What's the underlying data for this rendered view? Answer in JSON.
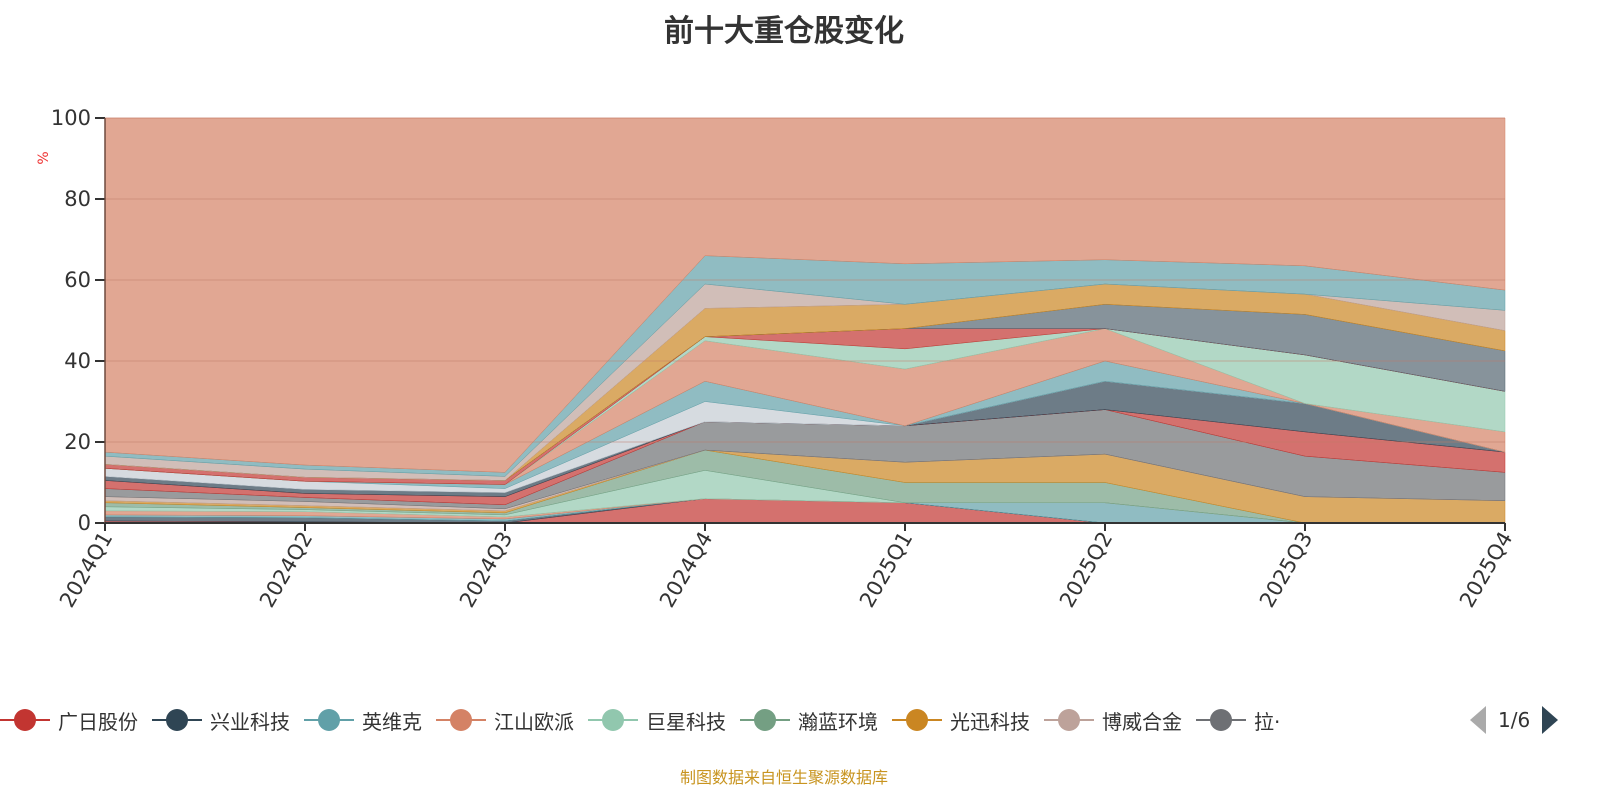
{
  "chart_data": {
    "type": "area",
    "stacked": true,
    "title": "前十大重仓股变化",
    "ylabel": "%",
    "ylim": [
      0,
      100
    ],
    "yticks": [
      "0",
      "20",
      "40",
      "60",
      "80",
      "100"
    ],
    "categories": [
      "2024Q1",
      "2024Q2",
      "2024Q3",
      "2024Q4",
      "2025Q1",
      "2025Q2",
      "2025Q3",
      "2025Q4"
    ],
    "series": [
      {
        "name": "广日股份",
        "color": "#c23531",
        "values": [
          0.5,
          0.3,
          0,
          6,
          5,
          0,
          0,
          0
        ]
      },
      {
        "name": "兴业科技",
        "color": "#2f4554",
        "values": [
          1,
          1,
          0.5,
          0,
          0,
          0,
          0,
          0
        ]
      },
      {
        "name": "英维克",
        "color": "#61a0a8",
        "values": [
          0.5,
          0.5,
          0.5,
          0,
          0,
          5,
          0,
          0
        ]
      },
      {
        "name": "江山欧派",
        "color": "#d48265",
        "values": [
          1,
          1,
          0.5,
          0,
          0,
          0,
          0,
          0
        ]
      },
      {
        "name": "巨星科技",
        "color": "#91c7ae",
        "values": [
          1,
          0.5,
          0.5,
          7,
          0,
          0,
          0,
          0
        ]
      },
      {
        "name": "瀚蓝环境",
        "color": "#749f83",
        "values": [
          1,
          0.5,
          0.5,
          5,
          5,
          5,
          0,
          0
        ]
      },
      {
        "name": "光迅科技",
        "color": "#ca8622",
        "values": [
          0.5,
          0.5,
          0.5,
          0,
          5,
          7,
          6.5,
          5.5
        ]
      },
      {
        "name": "博威合金",
        "color": "#bda29a",
        "values": [
          1,
          1,
          0.5,
          0,
          0,
          0,
          0,
          0
        ]
      },
      {
        "name": "拉·",
        "color": "#6e7074",
        "values": [
          2,
          1,
          1,
          7,
          9,
          11,
          10,
          7
        ]
      }
    ],
    "more_series": [
      {
        "color": "#c23531",
        "values": [
          2,
          1,
          2,
          0,
          0,
          0,
          6,
          5
        ]
      },
      {
        "color": "#2f4554",
        "values": [
          1,
          1,
          1,
          0,
          0,
          7,
          7,
          0
        ]
      },
      {
        "color": "#c4ccd3",
        "values": [
          2,
          2,
          1,
          5,
          0,
          0,
          0,
          0
        ]
      },
      {
        "color": "#61a0a8",
        "values": [
          0,
          0,
          1,
          5,
          0,
          5,
          0,
          0
        ]
      },
      {
        "color": "#d48265",
        "values": [
          0,
          0,
          0,
          10,
          14,
          8,
          0,
          5
        ]
      },
      {
        "color": "#91c7ae",
        "values": [
          0,
          0,
          0,
          1,
          5,
          0,
          12,
          10
        ]
      },
      {
        "color": "#c23531",
        "values": [
          1,
          1,
          1,
          0,
          5,
          0,
          0,
          0
        ]
      },
      {
        "color": "#546570",
        "values": [
          0,
          0,
          0,
          0,
          0,
          6,
          10,
          10
        ]
      },
      {
        "color": "#ca8622",
        "values": [
          0,
          0,
          0,
          7,
          6,
          5,
          5,
          5
        ]
      },
      {
        "color": "#bda29a",
        "values": [
          2,
          2,
          1,
          6,
          0,
          0,
          0,
          5
        ]
      },
      {
        "color": "#61a0a8",
        "values": [
          1,
          1,
          1,
          7,
          10,
          6,
          7,
          5
        ]
      }
    ],
    "remainder_color": "#d48265",
    "legend_position": "bottom",
    "grid": true
  },
  "legend": {
    "page": "1/6"
  },
  "source": "制图数据来自恒生聚源数据库"
}
